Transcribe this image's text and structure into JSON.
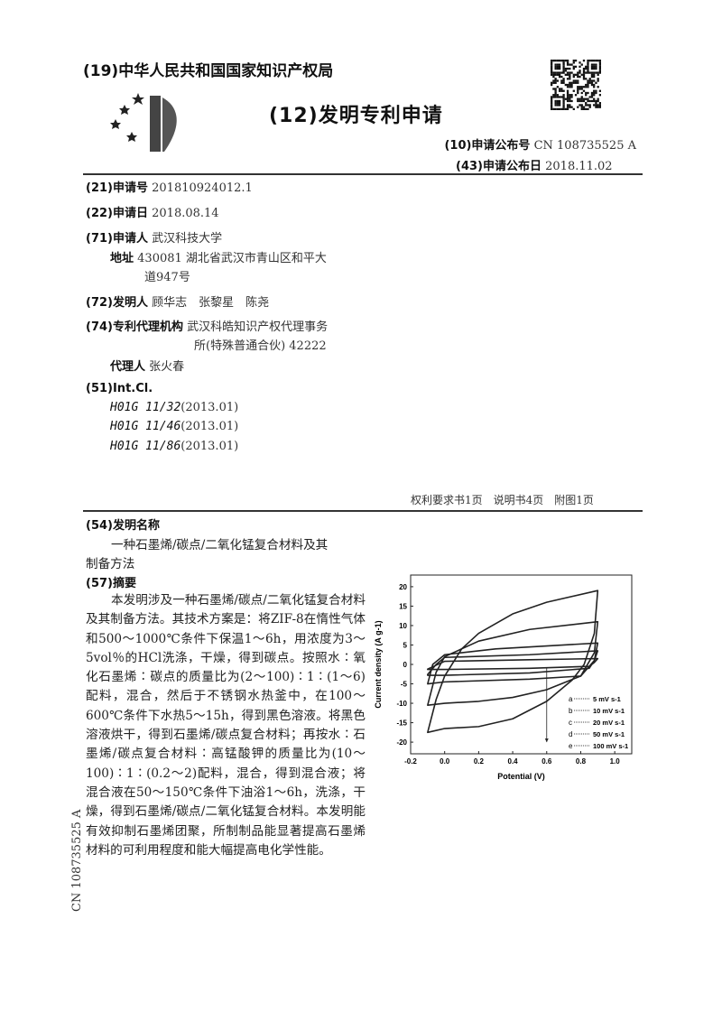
{
  "header": {
    "office": "(19)中华人民共和国国家知识产权局",
    "doc_type": "(12)发明专利申请",
    "pub_no_label": "(10)申请公布号",
    "pub_no": "CN 108735525 A",
    "pub_date_label": "(43)申请公布日",
    "pub_date": "2018.11.02"
  },
  "biblio": {
    "app_no_label": "(21)申请号",
    "app_no": "201810924012.1",
    "app_date_label": "(22)申请日",
    "app_date": "2018.08.14",
    "applicant_label": "(71)申请人",
    "applicant": "武汉科技大学",
    "address_label": "地址",
    "address_line1": "430081 湖北省武汉市青山区和平大",
    "address_line2": "道947号",
    "inventors_label": "(72)发明人",
    "inventors": "顾华志　张黎星　陈尧",
    "agency_label": "(74)专利代理机构",
    "agency_line1": "武汉科皓知识产权代理事务",
    "agency_line2": "所(特殊普通合伙) 42222",
    "agent_label": "代理人",
    "agent": "张火春",
    "intcl_label": "(51)Int.Cl.",
    "intcl": [
      {
        "code": "H01G 11/32",
        "ver": "(2013.01)"
      },
      {
        "code": "H01G 11/46",
        "ver": "(2013.01)"
      },
      {
        "code": "H01G 11/86",
        "ver": "(2013.01)"
      }
    ]
  },
  "pages_info": "权利要求书1页　说明书4页　附图1页",
  "invention": {
    "title_label": "(54)发明名称",
    "title_line1": "一种石墨烯/碳点/二氧化锰复合材料及其",
    "title_line2": "制备方法",
    "abstract_label": "(57)摘要",
    "abstract": "本发明涉及一种石墨烯/碳点/二氧化锰复合材料及其制备方法。其技术方案是：将ZIF-8在惰性气体和500～1000℃条件下保温1～6h，用浓度为3～5vol％的HCl洗涤，干燥，得到碳点。按照水∶氧化石墨烯∶碳点的质量比为(2～100)∶1∶(1～6)配料，混合，然后于不锈钢水热釜中，在100～600℃条件下水热5～15h，得到黑色溶液。将黑色溶液烘干，得到石墨烯/碳点复合材料；再按水∶石墨烯/碳点复合材料∶高锰酸钾的质量比为(10～100)∶1∶(0.2～2)配料，混合，得到混合液；将混合液在50～150℃条件下油浴1～6h，洗涤，干燥，得到石墨烯/碳点/二氧化锰复合材料。本发明能有效抑制石墨烯团聚，所制制品能显著提高石墨烯材料的可利用程度和能大幅提高电化学性能。"
  },
  "side_text": "CN 108735525 A",
  "chart_data": {
    "type": "line",
    "title": "",
    "xlabel": "Potential (V)",
    "ylabel": "Current density (A g-1)",
    "xlim": [
      -0.2,
      1.1
    ],
    "ylim": [
      -23,
      23
    ],
    "xticks": [
      "-0.2",
      "0.0",
      "0.2",
      "0.4",
      "0.6",
      "0.8",
      "1.0"
    ],
    "yticks": [
      "20",
      "15",
      "10",
      "5",
      "0",
      "-5",
      "-10",
      "-15",
      "-20"
    ],
    "grid": false,
    "legend_position": "bottom-right",
    "series": [
      {
        "name": "5 mV s-1",
        "letter": "a",
        "points": [
          [
            -0.1,
            -1.2
          ],
          [
            0,
            0.8
          ],
          [
            0.5,
            1.2
          ],
          [
            0.9,
            1.5
          ],
          [
            0.88,
            0.5
          ],
          [
            0.85,
            -0.5
          ],
          [
            0.5,
            -1
          ],
          [
            0,
            -1.3
          ],
          [
            -0.1,
            -1.3
          ]
        ]
      },
      {
        "name": "10 mV s-1",
        "letter": "b",
        "points": [
          [
            -0.1,
            -2.6
          ],
          [
            -0.05,
            0
          ],
          [
            0,
            1.8
          ],
          [
            0.5,
            2.5
          ],
          [
            0.9,
            3.5
          ],
          [
            0.88,
            1
          ],
          [
            0.85,
            -1
          ],
          [
            0.5,
            -2.2
          ],
          [
            0,
            -2.8
          ],
          [
            -0.1,
            -2.8
          ]
        ]
      },
      {
        "name": "20 mV s-1",
        "letter": "c",
        "points": [
          [
            -0.1,
            -5
          ],
          [
            -0.07,
            0
          ],
          [
            0,
            2.5
          ],
          [
            0.3,
            4
          ],
          [
            0.9,
            5.5
          ],
          [
            0.88,
            1
          ],
          [
            0.8,
            -3
          ],
          [
            0.5,
            -3.8
          ],
          [
            0,
            -4.5
          ],
          [
            -0.1,
            -5
          ]
        ]
      },
      {
        "name": "50 mV s-1",
        "letter": "d",
        "points": [
          [
            -0.1,
            -10.5
          ],
          [
            -0.05,
            -2
          ],
          [
            0,
            2
          ],
          [
            0.2,
            6
          ],
          [
            0.5,
            9
          ],
          [
            0.9,
            11
          ],
          [
            0.88,
            3
          ],
          [
            0.8,
            -3
          ],
          [
            0.6,
            -6.5
          ],
          [
            0.4,
            -8.5
          ],
          [
            0.2,
            -9.5
          ],
          [
            0,
            -10
          ],
          [
            -0.1,
            -10.5
          ]
        ]
      },
      {
        "name": "100 mV s-1",
        "letter": "e",
        "points": [
          [
            -0.1,
            -17.5
          ],
          [
            -0.05,
            -9
          ],
          [
            0,
            -3
          ],
          [
            0.1,
            4
          ],
          [
            0.2,
            8
          ],
          [
            0.4,
            13
          ],
          [
            0.6,
            16
          ],
          [
            0.9,
            19
          ],
          [
            0.88,
            8
          ],
          [
            0.82,
            0
          ],
          [
            0.75,
            -4
          ],
          [
            0.6,
            -9.5
          ],
          [
            0.4,
            -14
          ],
          [
            0.2,
            -16
          ],
          [
            0,
            -16.5
          ],
          [
            -0.1,
            -17.5
          ]
        ]
      }
    ],
    "annotation_arrow": {
      "x": 0.6,
      "from_y": -1,
      "to_y": -20
    }
  }
}
